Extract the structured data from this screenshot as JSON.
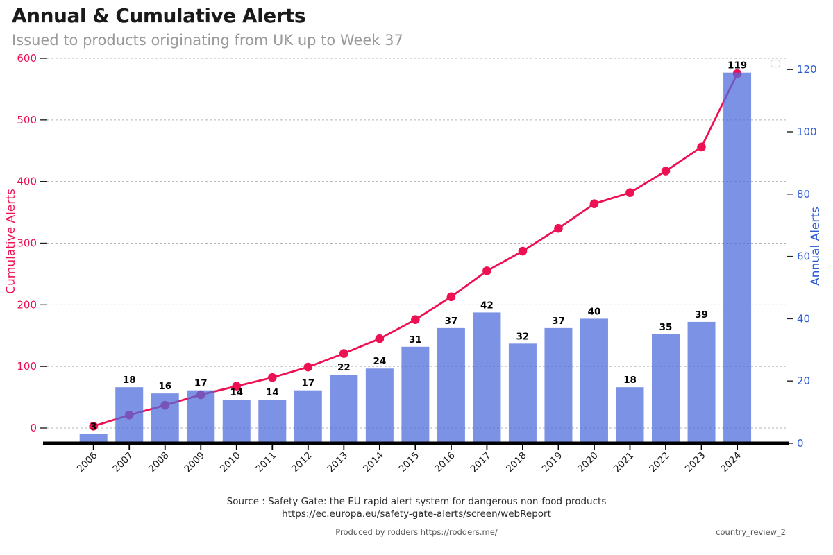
{
  "title": "Annual & Cumulative Alerts",
  "subtitle": "Issued to products originating from UK up to Week 37",
  "footer": {
    "source_line1": "Source : Safety Gate: the EU rapid alert system for dangerous non-food products",
    "source_line2": "https://ec.europa.eu/safety-gate-alerts/screen/webReport",
    "produced_by": "Produced by rodders https://rodders.me/",
    "file_tag": "country_review_2"
  },
  "colors": {
    "cumulative": "#ED1052",
    "annual": "#2A5AD4",
    "bar_fill": "rgba(78,108,220,0.74)",
    "grid": "#b3b3b3",
    "tick": "#222222",
    "x_label": "#1a1a1a",
    "bar_label": "#000000",
    "axis_line": "#000000",
    "legend_border": "#cccccc"
  },
  "chart_data": {
    "type": "bar",
    "subtype": "dual-axis bar + cumulative line",
    "title": "Annual & Cumulative Alerts",
    "subtitle": "Issued to products originating from UK up to Week 37",
    "categories": [
      "2006",
      "2007",
      "2008",
      "2009",
      "2010",
      "2011",
      "2012",
      "2013",
      "2014",
      "2015",
      "2016",
      "2017",
      "2018",
      "2019",
      "2020",
      "2021",
      "2022",
      "2023",
      "2024"
    ],
    "series": [
      {
        "name": "Annual Alerts",
        "type": "bar",
        "axis": "right",
        "values": [
          3,
          18,
          16,
          17,
          14,
          14,
          17,
          22,
          24,
          31,
          37,
          42,
          32,
          37,
          40,
          18,
          35,
          39,
          119
        ]
      },
      {
        "name": "Cumulative Alerts",
        "type": "line",
        "axis": "left",
        "values": [
          3,
          21,
          37,
          54,
          68,
          82,
          99,
          121,
          145,
          176,
          213,
          255,
          287,
          324,
          364,
          382,
          417,
          456,
          575
        ]
      }
    ],
    "left_axis": {
      "label": "Cumulative Alerts",
      "ticks": [
        0,
        100,
        200,
        300,
        400,
        500,
        600
      ],
      "range": [
        0,
        600
      ]
    },
    "right_axis": {
      "label": "Annual Alerts",
      "ticks": [
        0,
        20,
        40,
        60,
        80,
        100,
        120
      ],
      "range": [
        0,
        120
      ]
    },
    "grid": "horizontal dashed gridlines at left-axis ticks",
    "legend": {
      "visible": true,
      "entries": [],
      "position": "top-right (empty box)"
    },
    "bar_labels_shown": true
  }
}
